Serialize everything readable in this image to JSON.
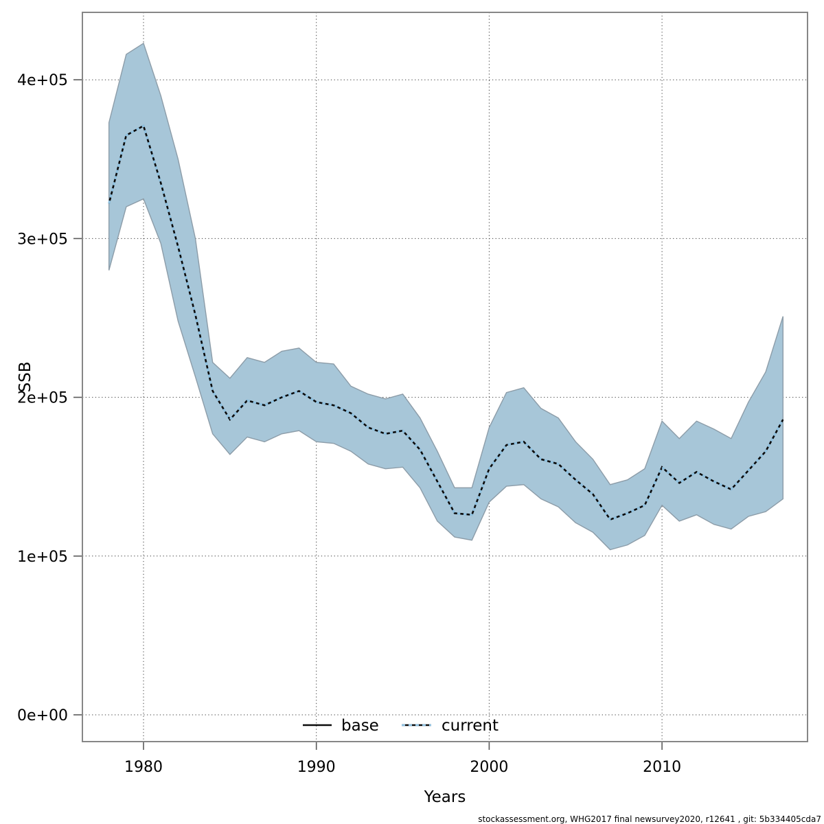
{
  "chart": {
    "ylabel": "SSB",
    "xlabel": "Years",
    "footer": "stockassessment.org, WHG2017 final newsurvey2020, r12641 , git: 5b334405cda7",
    "legend": {
      "base_label": "base",
      "current_label": "current"
    },
    "colors": {
      "band_fill": "#a7c6d8",
      "band_border": "#8c9ca8",
      "base_line": "#0b0b0b",
      "current_line": "#8fc1e0",
      "grid": "#3f3f3f",
      "frame": "#868686",
      "text": "#000000",
      "background": "#ffffff"
    },
    "axes": {
      "xticks": [
        {
          "value": 1980,
          "label": "1980"
        },
        {
          "value": 1990,
          "label": "1990"
        },
        {
          "value": 2000,
          "label": "2000"
        },
        {
          "value": 2010,
          "label": "2010"
        }
      ],
      "yticks": [
        {
          "value": 0,
          "label": "0e+00"
        },
        {
          "value": 100000,
          "label": "1e+05"
        },
        {
          "value": 200000,
          "label": "2e+05"
        },
        {
          "value": 300000,
          "label": "3e+05"
        },
        {
          "value": 400000,
          "label": "4e+05"
        }
      ]
    }
  },
  "chart_data": {
    "type": "line",
    "title": "",
    "xlabel": "Years",
    "ylabel": "SSB",
    "xlim": [
      1976.5,
      2018.4
    ],
    "ylim": [
      -17000,
      443000
    ],
    "grid": "dotted",
    "legend_position": "bottom-center-inside",
    "x": [
      1978,
      1979,
      1980,
      1981,
      1982,
      1983,
      1984,
      1985,
      1986,
      1987,
      1988,
      1989,
      1990,
      1991,
      1992,
      1993,
      1994,
      1995,
      1996,
      1997,
      1998,
      1999,
      2000,
      2001,
      2002,
      2003,
      2004,
      2005,
      2006,
      2007,
      2008,
      2009,
      2010,
      2011,
      2012,
      2013,
      2014,
      2015,
      2016,
      2017
    ],
    "series": [
      {
        "name": "base",
        "line_style": "solid",
        "color": "#000000",
        "note": "solid black line; overlaps the current line almost exactly (visible as dark dashes between the blue dashes)",
        "values": [
          322000,
          365000,
          371000,
          335000,
          295000,
          252000,
          204000,
          186000,
          198000,
          195000,
          200000,
          204000,
          197000,
          195000,
          190000,
          181000,
          177000,
          179000,
          167000,
          147000,
          127000,
          126000,
          155000,
          170000,
          172000,
          161000,
          158000,
          148000,
          139000,
          123000,
          127000,
          132000,
          156000,
          146000,
          153000,
          147000,
          142000,
          154000,
          166000,
          186000
        ]
      },
      {
        "name": "current",
        "line_style": "dotted",
        "color": "#8fc1e0",
        "values": [
          322000,
          365000,
          371000,
          335000,
          295000,
          252000,
          204000,
          186000,
          198000,
          195000,
          200000,
          204000,
          197000,
          195000,
          190000,
          181000,
          177000,
          179000,
          167000,
          147000,
          127000,
          126000,
          155000,
          170000,
          172000,
          161000,
          158000,
          148000,
          139000,
          123000,
          127000,
          132000,
          156000,
          146000,
          153000,
          147000,
          142000,
          154000,
          166000,
          186000
        ],
        "band": {
          "fill": "#a7c6d8",
          "low": [
            280000,
            320000,
            325000,
            297000,
            248000,
            213000,
            177000,
            164000,
            175000,
            172000,
            177000,
            179000,
            172000,
            171000,
            166000,
            158000,
            155000,
            156000,
            143000,
            122000,
            112000,
            110000,
            134000,
            144000,
            145000,
            136000,
            131000,
            121000,
            115000,
            104000,
            107000,
            113000,
            132000,
            122000,
            126000,
            120000,
            117000,
            125000,
            128000,
            136000
          ],
          "high": [
            373000,
            416000,
            423000,
            390000,
            350000,
            300000,
            222000,
            212000,
            225000,
            222000,
            229000,
            231000,
            222000,
            221000,
            207000,
            202000,
            199000,
            202000,
            187000,
            166000,
            143000,
            143000,
            181000,
            203000,
            206000,
            193000,
            187000,
            172000,
            161000,
            145000,
            148000,
            155000,
            185000,
            174000,
            185000,
            180000,
            174000,
            197000,
            216000,
            251000
          ]
        }
      }
    ]
  }
}
